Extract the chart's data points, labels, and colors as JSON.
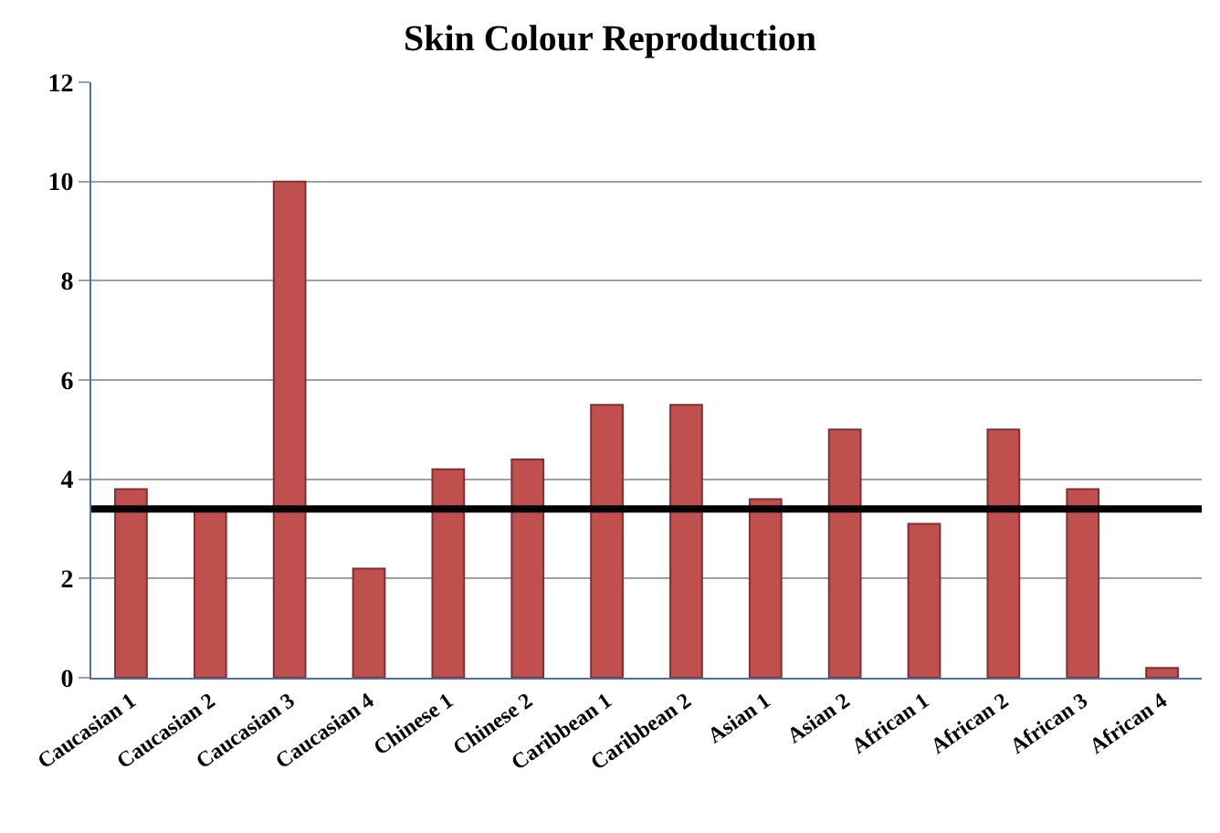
{
  "chart_data": {
    "type": "bar",
    "title": "Skin Colour Reproduction",
    "categories": [
      "Caucasian 1",
      "Caucasian 2",
      "Caucasian 3",
      "Caucasian 4",
      "Chinese 1",
      "Chinese 2",
      "Caribbean 1",
      "Caribbean 2",
      "Asian 1",
      "Asian 2",
      "African 1",
      "African 2",
      "African 3",
      "African 4"
    ],
    "values": [
      3.8,
      3.4,
      10.0,
      2.2,
      4.2,
      4.4,
      5.5,
      5.5,
      3.6,
      5.0,
      3.1,
      5.0,
      3.8,
      0.2
    ],
    "color": "#c0504d",
    "ylim": [
      0,
      12
    ],
    "yticks": [
      0,
      2,
      4,
      6,
      8,
      10,
      12
    ],
    "grid": "y",
    "ref_lines": [
      {
        "axis": "y",
        "value": 3.4,
        "color": "#000000"
      }
    ]
  }
}
